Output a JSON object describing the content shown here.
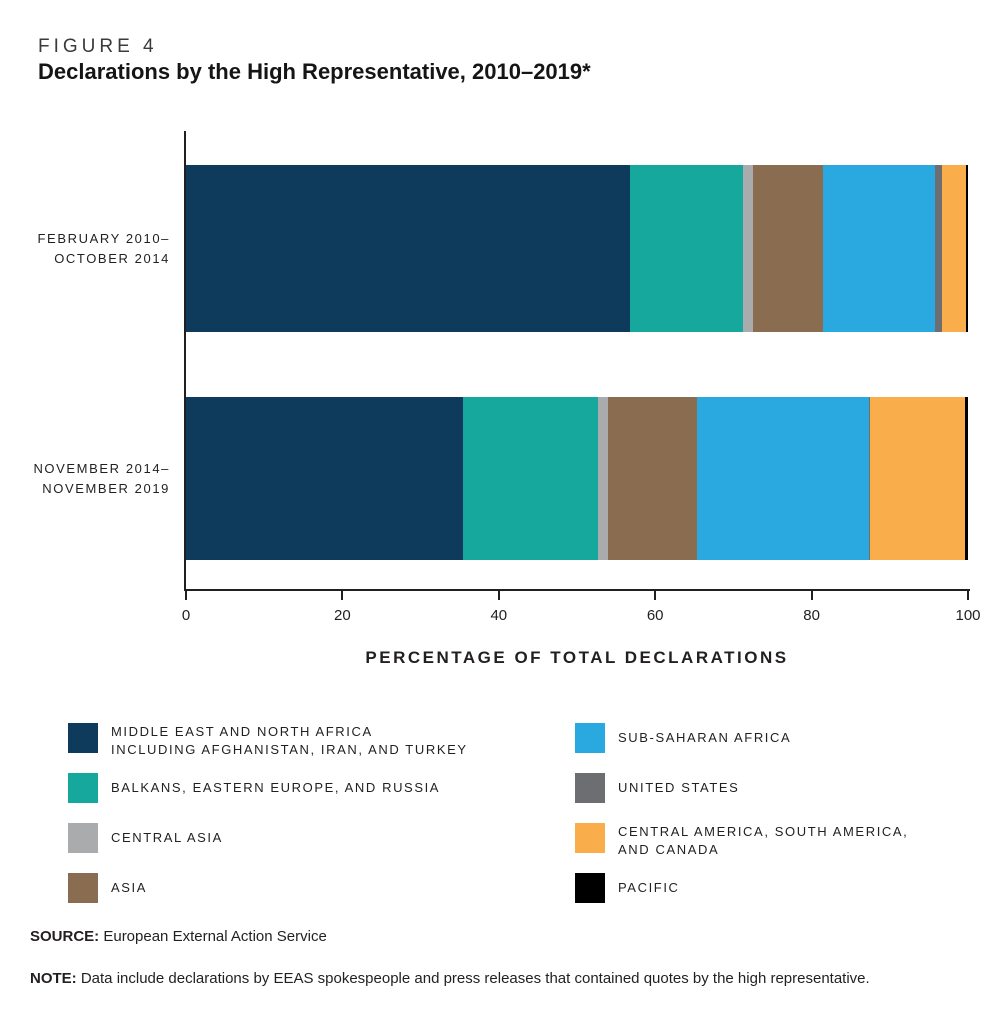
{
  "figure_label": "FIGURE 4",
  "title": "Declarations by the High Representative, 2010–2019*",
  "chart_data": {
    "type": "bar",
    "orientation": "horizontal",
    "stacked": true,
    "title": "Declarations by the High Representative, 2010–2019*",
    "categories": [
      {
        "lines": [
          "FEBRUARY 2010–",
          "OCTOBER 2014"
        ]
      },
      {
        "lines": [
          "NOVEMBER 2014–",
          "NOVEMBER 2019"
        ]
      }
    ],
    "series": [
      {
        "name": "MIDDLE EAST AND NORTH AFRICA INCLUDING AFGHANISTAN, IRAN, AND TURKEY",
        "color": "#0e3a5c",
        "values": [
          56.8,
          35.4
        ]
      },
      {
        "name": "BALKANS, EASTERN EUROPE, AND RUSSIA",
        "color": "#16a89c",
        "values": [
          14.4,
          17.3
        ]
      },
      {
        "name": "CENTRAL ASIA",
        "color": "#a9abad",
        "values": [
          1.3,
          1.3
        ]
      },
      {
        "name": "ASIA",
        "color": "#8a6d50",
        "values": [
          9.0,
          11.4
        ]
      },
      {
        "name": "SUB-SAHARAN AFRICA",
        "color": "#2aa9e0",
        "values": [
          14.3,
          22.0
        ]
      },
      {
        "name": "UNITED STATES",
        "color": "#6d6e71",
        "values": [
          0.9,
          0.1
        ]
      },
      {
        "name": "CENTRAL AMERICA, SOUTH AMERICA, AND CANADA",
        "color": "#f9ae4b",
        "values": [
          3.0,
          12.1
        ]
      },
      {
        "name": "PACIFIC",
        "color": "#000000",
        "values": [
          0.3,
          0.4
        ]
      }
    ],
    "xlabel": "PERCENTAGE OF TOTAL DECLARATIONS",
    "x_ticks": [
      0,
      20,
      40,
      60,
      80,
      100
    ],
    "xlim": [
      0,
      100
    ],
    "unit": "percent",
    "grid": false,
    "legend_position": "bottom"
  },
  "legend": {
    "columns": [
      [
        {
          "series": 0,
          "lines": [
            "MIDDLE EAST AND NORTH AFRICA",
            "INCLUDING AFGHANISTAN, IRAN, AND TURKEY"
          ]
        },
        {
          "series": 1,
          "lines": [
            "BALKANS, EASTERN EUROPE, AND RUSSIA"
          ]
        },
        {
          "series": 2,
          "lines": [
            "CENTRAL ASIA"
          ]
        },
        {
          "series": 3,
          "lines": [
            "ASIA"
          ]
        }
      ],
      [
        {
          "series": 4,
          "lines": [
            "SUB-SAHARAN AFRICA"
          ]
        },
        {
          "series": 5,
          "lines": [
            "UNITED STATES"
          ]
        },
        {
          "series": 6,
          "lines": [
            "CENTRAL AMERICA, SOUTH AMERICA,",
            "AND CANADA"
          ]
        },
        {
          "series": 7,
          "lines": [
            "PACIFIC"
          ]
        }
      ]
    ]
  },
  "source": {
    "label": "SOURCE:",
    "text": "European External Action Service"
  },
  "note": {
    "label": "NOTE:",
    "text": "Data include declarations by EEAS spokespeople and press releases that contained quotes by the high representative."
  },
  "colors": {
    "text": "#231f20",
    "axis": "#231f20",
    "background": "#ffffff"
  }
}
